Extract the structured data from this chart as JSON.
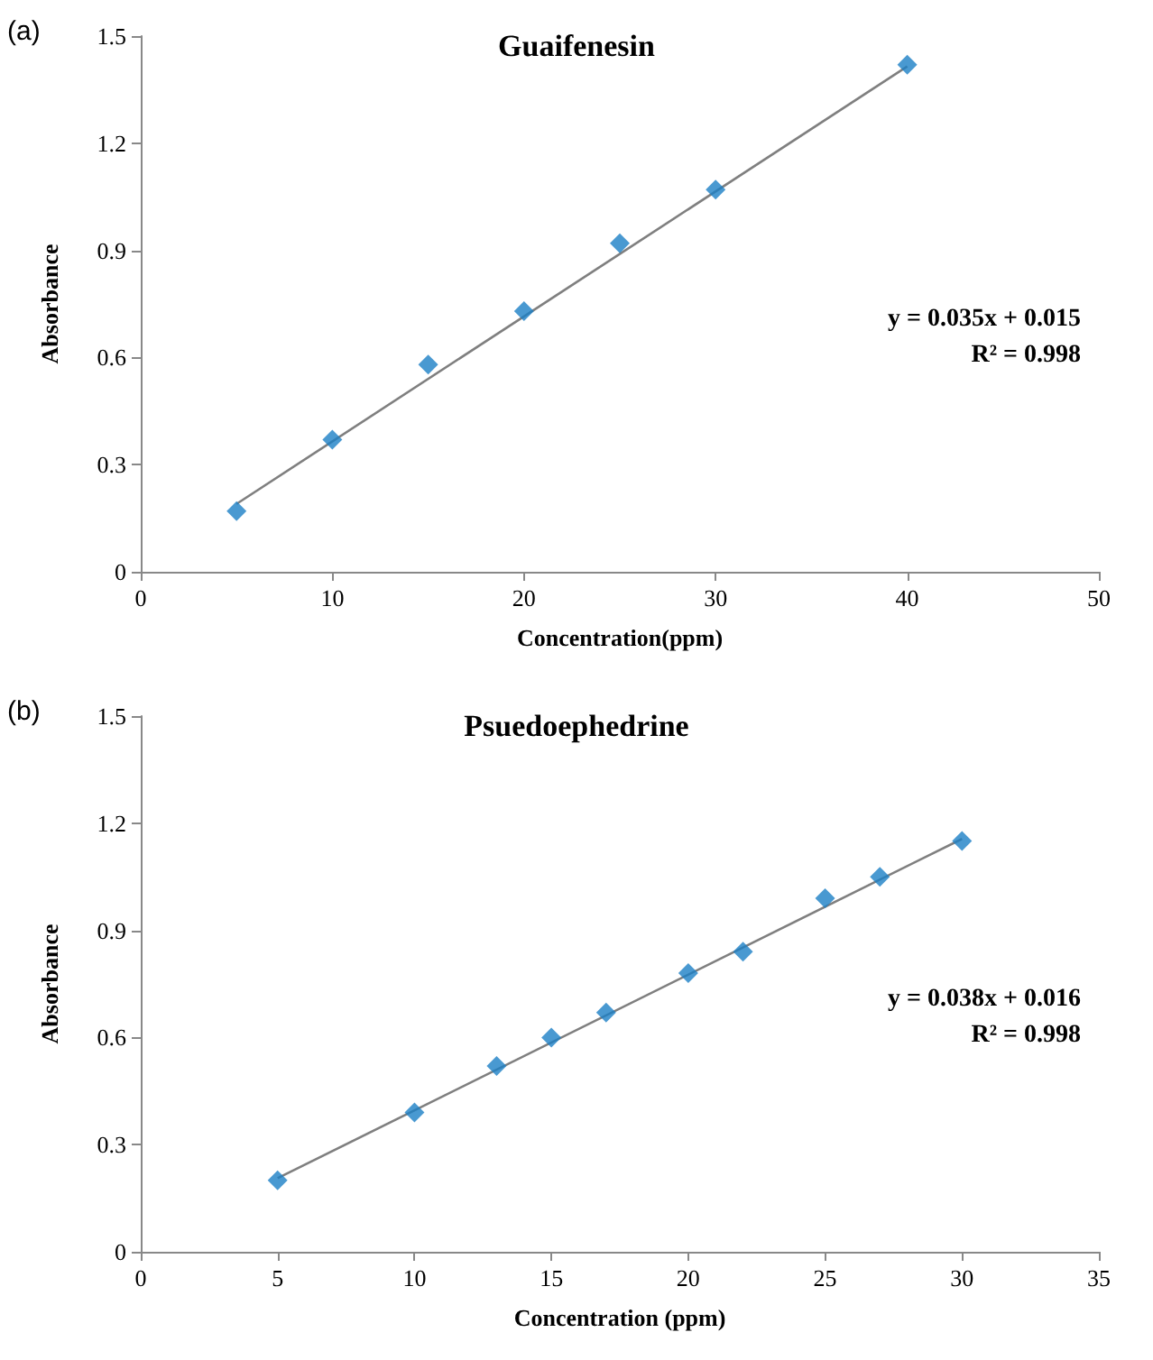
{
  "chart_data": [
    {
      "type": "scatter",
      "title": "Guaifenesin",
      "xlabel": "Concentration(ppm)",
      "ylabel": "Absorbance",
      "annotations": [
        "(a)",
        "y = 0.035x + 0.015",
        "R² = 0.998"
      ],
      "x": [
        5,
        10,
        15,
        20,
        25,
        30,
        40
      ],
      "grid": false,
      "xlim": [
        0,
        50
      ],
      "xticks": [
        0,
        10,
        20,
        30,
        40,
        50
      ],
      "ylim": [
        0,
        1.5
      ],
      "yticks": [
        0,
        0.3,
        0.6,
        0.9,
        1.2,
        1.5
      ],
      "series": [
        {
          "marker": "diamond",
          "color": "#1b7fc6",
          "values": [
            0.17,
            0.37,
            0.58,
            0.73,
            0.92,
            1.07,
            1.42
          ]
        },
        {
          "type": "line",
          "marker": "none",
          "color": "#7f7f7f",
          "x": [
            5,
            40
          ],
          "values": [
            0.19,
            1.415
          ]
        }
      ]
    },
    {
      "type": "scatter",
      "title": "Psuedoephedrine",
      "xlabel": "Concentration (ppm)",
      "ylabel": "Absorbance",
      "annotations": [
        "(b)",
        "y = 0.038x + 0.016",
        "R² = 0.998"
      ],
      "x": [
        5,
        10,
        13,
        15,
        17,
        20,
        22,
        25,
        27,
        30
      ],
      "grid": false,
      "xlim": [
        0,
        35
      ],
      "xticks": [
        0,
        5,
        10,
        15,
        20,
        25,
        30,
        35
      ],
      "ylim": [
        0,
        1.5
      ],
      "yticks": [
        0,
        0.3,
        0.6,
        0.9,
        1.2,
        1.5
      ],
      "series": [
        {
          "marker": "diamond",
          "color": "#1b7fc6",
          "values": [
            0.2,
            0.39,
            0.52,
            0.6,
            0.67,
            0.78,
            0.84,
            0.99,
            1.05,
            1.15
          ]
        },
        {
          "type": "line",
          "marker": "none",
          "color": "#7f7f7f",
          "x": [
            5,
            30
          ],
          "values": [
            0.206,
            1.156
          ]
        }
      ]
    }
  ]
}
